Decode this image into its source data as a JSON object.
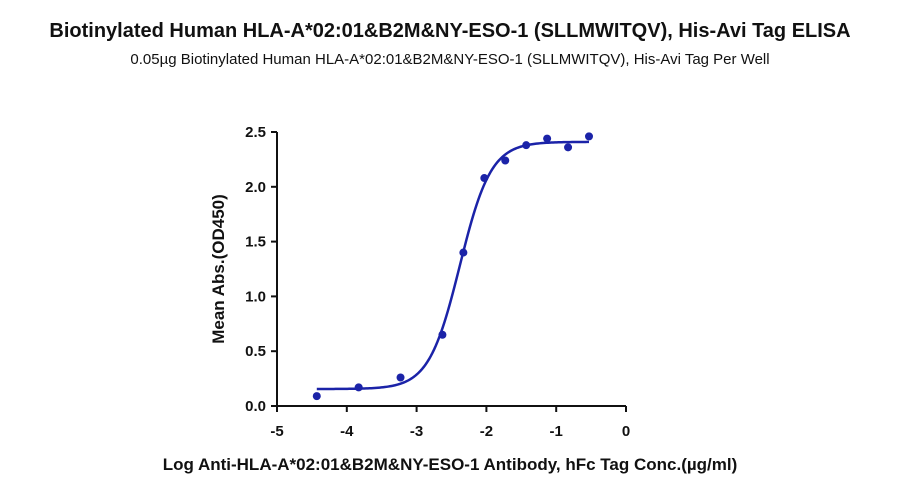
{
  "chart_data": {
    "type": "scatter",
    "title": "Biotinylated Human HLA-A*02:01&B2M&NY-ESO-1 (SLLMWITQV), His-Avi Tag ELISA",
    "subtitle": "0.05µg Biotinylated Human HLA-A*02:01&B2M&NY-ESO-1 (SLLMWITQV), His-Avi Tag Per Well",
    "xlabel": "Log Anti-HLA-A*02:01&B2M&NY-ESO-1 Antibody, hFc Tag Conc.(µg/ml)",
    "ylabel": "Mean Abs.(OD450)",
    "xlim": [
      -5,
      0
    ],
    "ylim": [
      0,
      2.5
    ],
    "xticks": [
      "-5",
      "-4",
      "-3",
      "-2",
      "-1",
      "0"
    ],
    "yticks": [
      "0.0",
      "0.5",
      "1.0",
      "1.5",
      "2.0",
      "2.5"
    ],
    "grid": false,
    "colors": {
      "series": "#1b23a8",
      "axis": "#111111"
    },
    "series": [
      {
        "x": [
          -4.43,
          -3.83,
          -3.23,
          -2.63,
          -2.33,
          -2.03,
          -1.73,
          -1.43,
          -1.13,
          -0.83,
          -0.53
        ],
        "y": [
          0.09,
          0.17,
          0.26,
          0.65,
          1.4,
          2.08,
          2.24,
          2.38,
          2.44,
          2.36,
          2.46
        ]
      }
    ],
    "fit": {
      "bottom": 0.155,
      "top": 2.41,
      "log_ec50": -2.38,
      "hill_slope": 1.95,
      "x_range": [
        -4.43,
        -0.53
      ]
    }
  }
}
